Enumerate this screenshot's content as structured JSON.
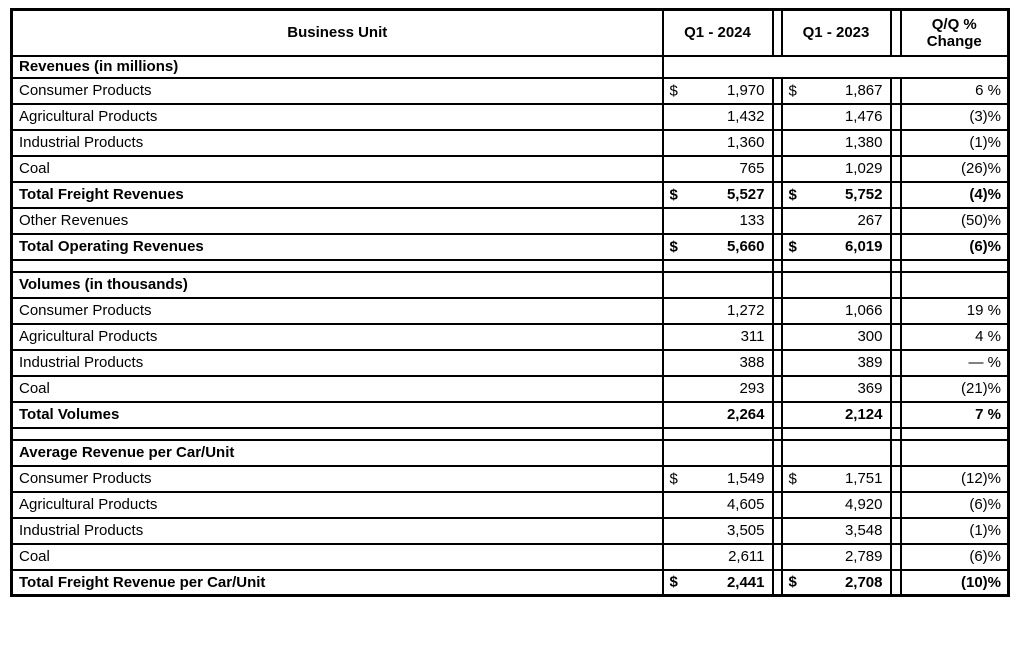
{
  "currency_symbol": "$",
  "header": {
    "business_unit": "Business Unit",
    "q1_2024": "Q1 - 2024",
    "q1_2023": "Q1 - 2023",
    "change_line1": "Q/Q %",
    "change_line2": "Change"
  },
  "sections": [
    {
      "title": "Revenues (in millions)",
      "merged_right": true,
      "rows": [
        {
          "label": "Consumer Products",
          "dollar": true,
          "q1_2024": "1,970",
          "q1_2023": "1,867",
          "change": "6 %"
        },
        {
          "label": "Agricultural Products",
          "q1_2024": "1,432",
          "q1_2023": "1,476",
          "change": "(3)%"
        },
        {
          "label": "Industrial Products",
          "q1_2024": "1,360",
          "q1_2023": "1,380",
          "change": "(1)%"
        },
        {
          "label": "Coal",
          "q1_2024": "765",
          "q1_2023": "1,029",
          "change": "(26)%"
        },
        {
          "label": "Total Freight Revenues",
          "bold": true,
          "dollar": true,
          "q1_2024": "5,527",
          "q1_2023": "5,752",
          "change": "(4)%"
        },
        {
          "label": "Other Revenues",
          "q1_2024": "133",
          "q1_2023": "267",
          "change": "(50)%"
        },
        {
          "label": "Total Operating Revenues",
          "bold": true,
          "dollar": true,
          "q1_2024": "5,660",
          "q1_2023": "6,019",
          "change": "(6)%"
        }
      ]
    },
    {
      "title": "Volumes (in thousands)",
      "merged_right": false,
      "rows": [
        {
          "label": "Consumer Products",
          "q1_2024": "1,272",
          "q1_2023": "1,066",
          "change": "19 %"
        },
        {
          "label": "Agricultural Products",
          "q1_2024": "311",
          "q1_2023": "300",
          "change": "4 %"
        },
        {
          "label": "Industrial Products",
          "q1_2024": "388",
          "q1_2023": "389",
          "change": "— %"
        },
        {
          "label": "Coal",
          "q1_2024": "293",
          "q1_2023": "369",
          "change": "(21)%"
        },
        {
          "label": "Total Volumes",
          "bold": true,
          "q1_2024": "2,264",
          "q1_2023": "2,124",
          "change": "7 %"
        }
      ]
    },
    {
      "title": "Average Revenue per Car/Unit",
      "merged_right": false,
      "rows": [
        {
          "label": "Consumer Products",
          "dollar": true,
          "q1_2024": "1,549",
          "q1_2023": "1,751",
          "change": "(12)%"
        },
        {
          "label": "Agricultural Products",
          "q1_2024": "4,605",
          "q1_2023": "4,920",
          "change": "(6)%"
        },
        {
          "label": "Industrial Products",
          "q1_2024": "3,505",
          "q1_2023": "3,548",
          "change": "(1)%"
        },
        {
          "label": "Coal",
          "q1_2024": "2,611",
          "q1_2023": "2,789",
          "change": "(6)%"
        },
        {
          "label": "Total Freight Revenue per Car/Unit",
          "bold": true,
          "dollar": true,
          "q1_2024": "2,441",
          "q1_2023": "2,708",
          "change": "(10)%"
        }
      ]
    }
  ]
}
